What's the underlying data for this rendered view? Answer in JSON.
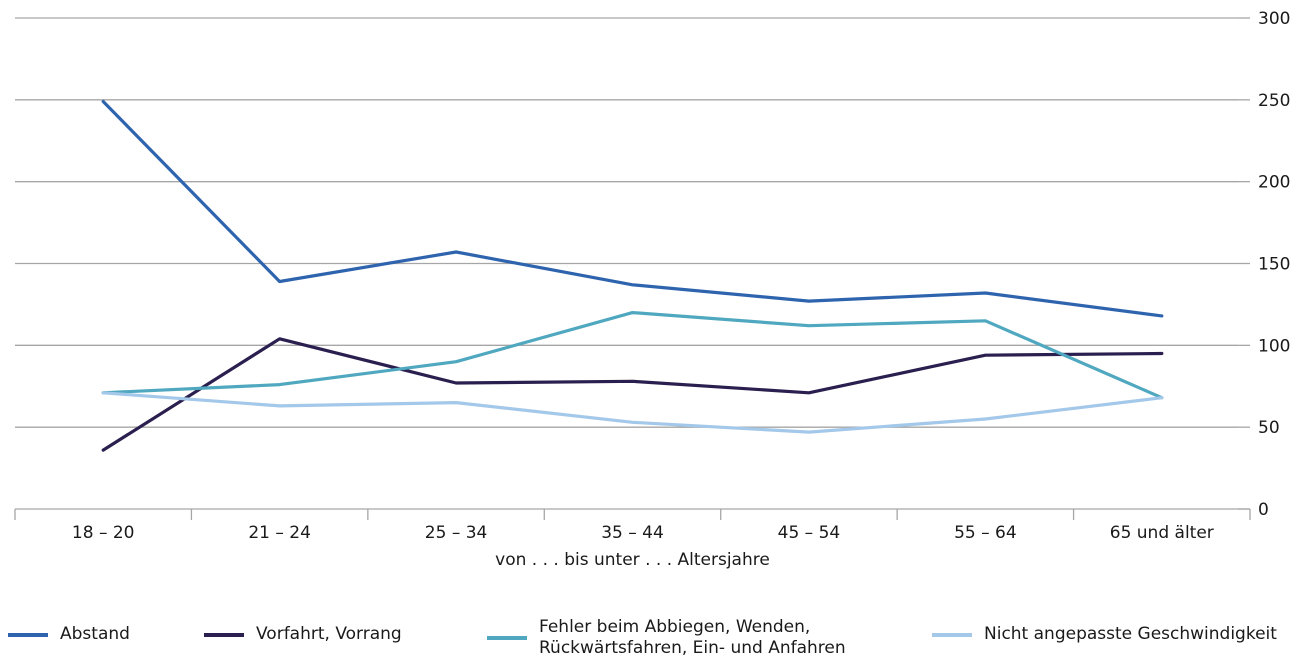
{
  "chart_data": {
    "type": "line",
    "categories": [
      "18 – 20",
      "21 – 24",
      "25 – 34",
      "35 – 44",
      "45 – 54",
      "55 – 64",
      "65 und älter"
    ],
    "xlabel": "von . . . bis unter . . . Altersjahre",
    "ylabel": "",
    "ylim": [
      0,
      300
    ],
    "yticks": [
      "0",
      "50",
      "100",
      "150",
      "200",
      "250",
      "300"
    ],
    "y_axis_side": "right",
    "grid": true,
    "legend_position": "bottom",
    "series": [
      {
        "name": "Abstand",
        "color": "#2e64ae",
        "values": [
          249,
          139,
          157,
          137,
          127,
          132,
          118
        ]
      },
      {
        "name": "Vorfahrt, Vorrang",
        "color": "#2b1f4f",
        "values": [
          36,
          104,
          77,
          78,
          71,
          94,
          95
        ]
      },
      {
        "name": "Fehler beim Abbiegen, Wenden,\nRückwärtsfahren, Ein- und Anfahren",
        "color": "#4fa8bf",
        "values": [
          71,
          76,
          90,
          120,
          112,
          115,
          68
        ]
      },
      {
        "name": "Nicht angepasste Geschwindigkeit",
        "color": "#a3c8e9",
        "values": [
          71,
          63,
          65,
          53,
          47,
          55,
          68
        ]
      }
    ]
  }
}
